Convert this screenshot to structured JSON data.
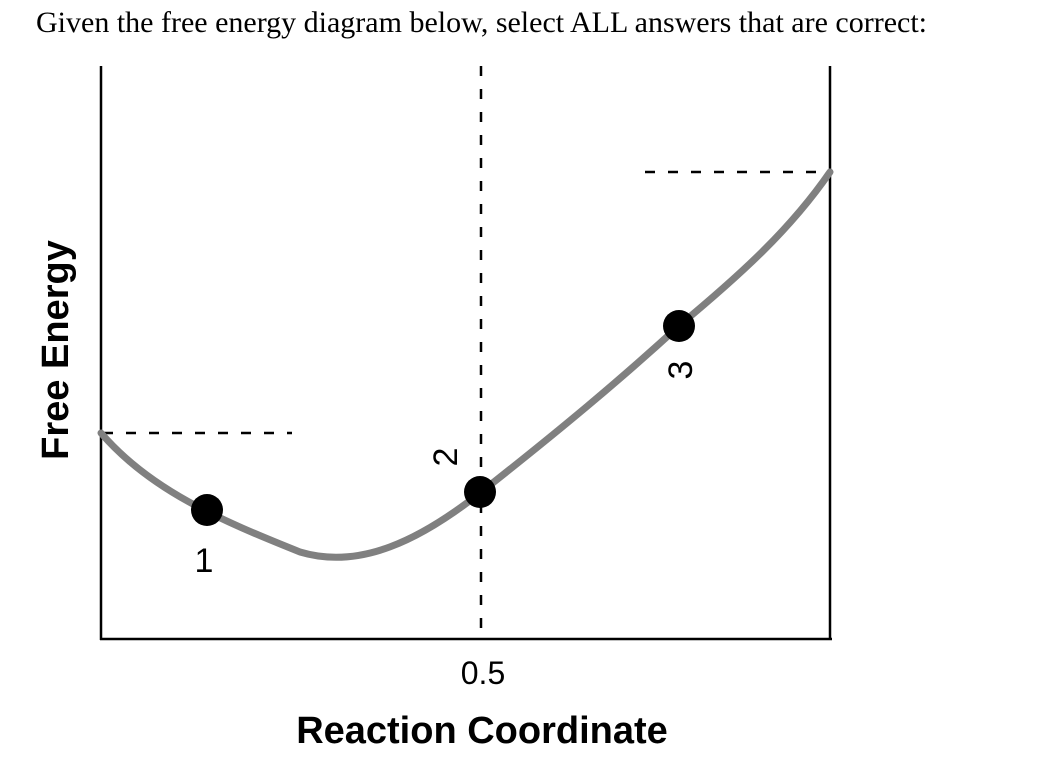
{
  "question": {
    "text": "Given the free energy diagram below, select ALL answers that are correct:"
  },
  "diagram": {
    "y_axis_label": "Free Energy",
    "x_axis_label": "Reaction Coordinate",
    "x_tick_label": "0.5",
    "points": [
      {
        "label": "1"
      },
      {
        "label": "2"
      },
      {
        "label": "3"
      }
    ],
    "colors": {
      "curve": "#808080",
      "axes": "#000000",
      "points": "#000000"
    }
  }
}
